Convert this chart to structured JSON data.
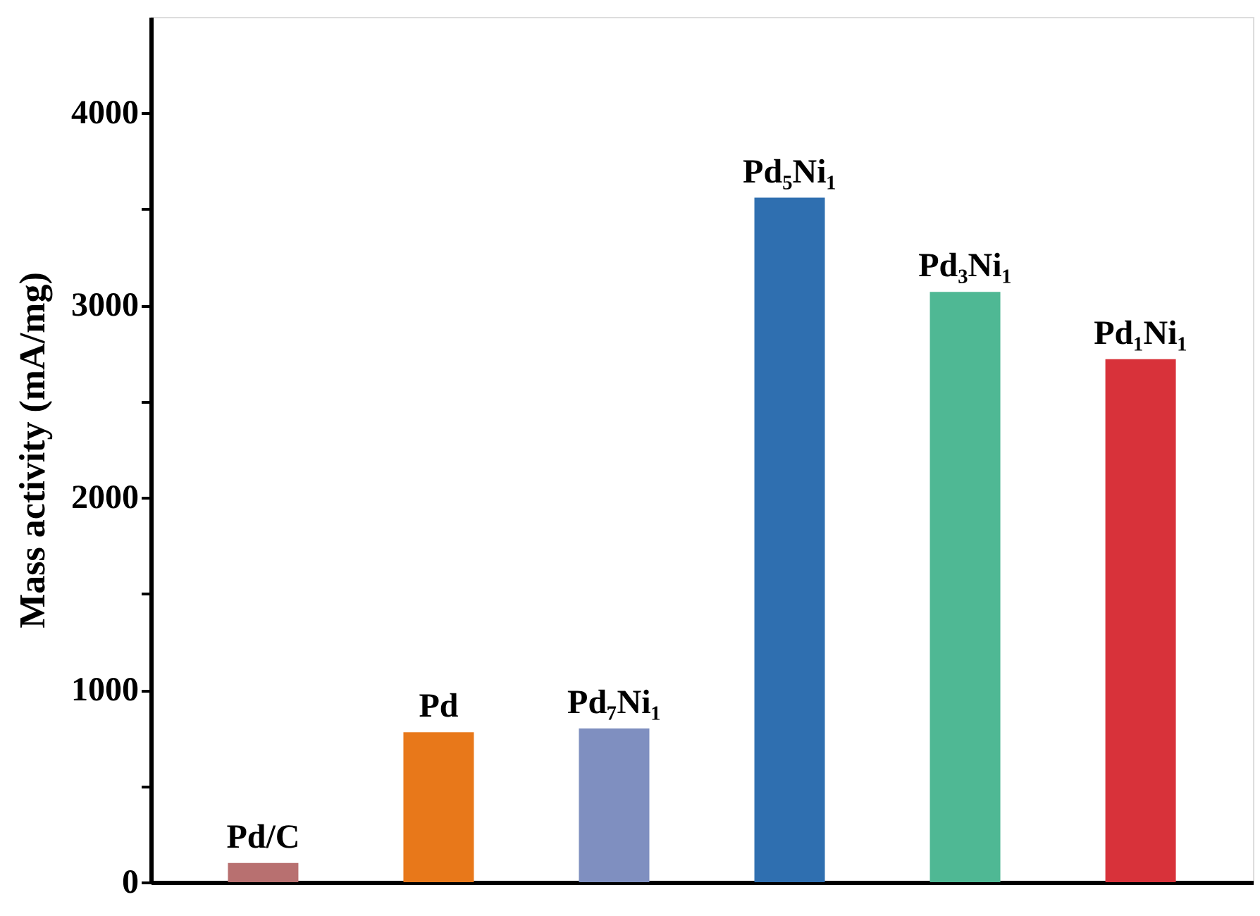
{
  "chart_data": {
    "type": "bar",
    "ylabel": "Mass activity (mA/mg)",
    "categories": [
      "Pd/C",
      "Pd",
      "Pd₇Ni₁",
      "Pd₅Ni₁",
      "Pd₃Ni₁",
      "Pd₁Ni₁"
    ],
    "values": [
      100,
      780,
      800,
      3560,
      3070,
      2720
    ],
    "colors": [
      "#b87070",
      "#e8781a",
      "#7f8fc0",
      "#2f6fb0",
      "#4fb894",
      "#d8323a"
    ],
    "ylim": [
      0,
      4500
    ],
    "yticks": [
      0,
      {
        "value": 500,
        "label": null
      },
      1000,
      {
        "value": 1500,
        "label": null
      },
      2000,
      {
        "value": 2500,
        "label": null
      },
      3000,
      {
        "value": 3500,
        "label": null
      },
      4000
    ],
    "grid": false
  }
}
